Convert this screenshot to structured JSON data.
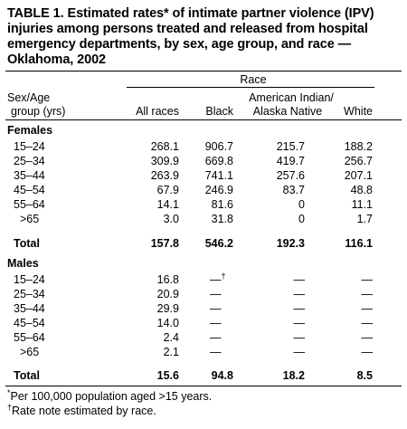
{
  "title": {
    "lines": [
      "TABLE 1. Estimated rates* of intimate partner violence (IPV)",
      "injuries among persons treated and released from hospital",
      "emergency departments, by sex, age group, and race —",
      "Oklahoma, 2002"
    ]
  },
  "header": {
    "race_label": "Race",
    "sexage_line1": "Sex/Age",
    "sexage_line2": "group (yrs)",
    "col_all": "All races",
    "col_black": "Black",
    "col_aian_line1": "American Indian/",
    "col_aian_line2": "Alaska Native",
    "col_white": "White"
  },
  "sections": [
    {
      "label": "Females",
      "rows": [
        {
          "age": "15–24",
          "all": "268.1",
          "black": "906.7",
          "aian": "215.7",
          "white": "188.2"
        },
        {
          "age": "25–34",
          "all": "309.9",
          "black": "669.8",
          "aian": "419.7",
          "white": "256.7"
        },
        {
          "age": "35–44",
          "all": "263.9",
          "black": "741.1",
          "aian": "257.6",
          "white": "207.1"
        },
        {
          "age": "45–54",
          "all": "67.9",
          "black": "246.9",
          "aian": "83.7",
          "white": "48.8"
        },
        {
          "age": "55–64",
          "all": "14.1",
          "black": "81.6",
          "aian": "0",
          "white": "11.1"
        },
        {
          "age": ">65",
          "all": "3.0",
          "black": "31.8",
          "aian": "0",
          "white": "1.7"
        }
      ],
      "total": {
        "label": "Total",
        "all": "157.8",
        "black": "546.2",
        "aian": "192.3",
        "white": "116.1"
      }
    },
    {
      "label": "Males",
      "rows": [
        {
          "age": "15–24",
          "all": "16.8",
          "black": "—",
          "black_mark": "†",
          "aian": "—",
          "white": "—"
        },
        {
          "age": "25–34",
          "all": "20.9",
          "black": "—",
          "aian": "—",
          "white": "—"
        },
        {
          "age": "35–44",
          "all": "29.9",
          "black": "—",
          "aian": "—",
          "white": "—"
        },
        {
          "age": "45–54",
          "all": "14.0",
          "black": "—",
          "aian": "—",
          "white": "—"
        },
        {
          "age": "55–64",
          "all": "2.4",
          "black": "—",
          "aian": "—",
          "white": "—"
        },
        {
          "age": ">65",
          "all": "2.1",
          "black": "—",
          "aian": "—",
          "white": "—"
        }
      ],
      "total": {
        "label": "Total",
        "all": "15.6",
        "black": "94.8",
        "aian": "18.2",
        "white": "8.5"
      }
    }
  ],
  "footnotes": [
    {
      "mark": "*",
      "text": "Per 100,000 population aged >15 years."
    },
    {
      "mark": "†",
      "text": "Rate note estimated by race."
    }
  ]
}
